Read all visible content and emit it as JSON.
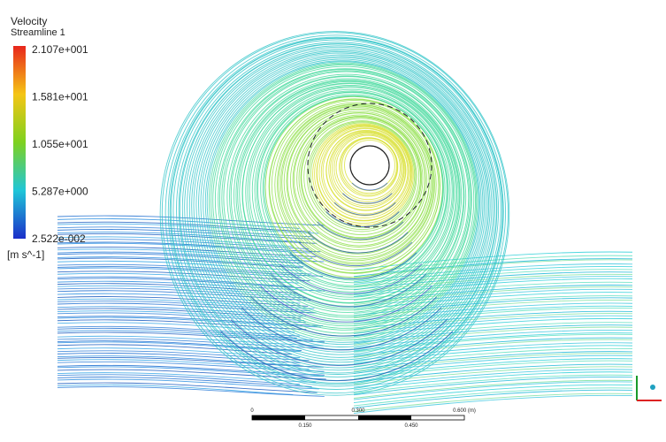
{
  "legend": {
    "title": "Velocity",
    "subtitle": "Streamline 1",
    "labels": [
      "2.107e+001",
      "1.581e+001",
      "1.055e+001",
      "5.287e+000",
      "2.522e-002"
    ],
    "unit": "[m s^-1]"
  },
  "scale_bar": {
    "top_labels": [
      "0",
      "0.300",
      "0.600 (m)"
    ],
    "bottom_labels": [
      "0.150",
      "0.450"
    ]
  }
}
